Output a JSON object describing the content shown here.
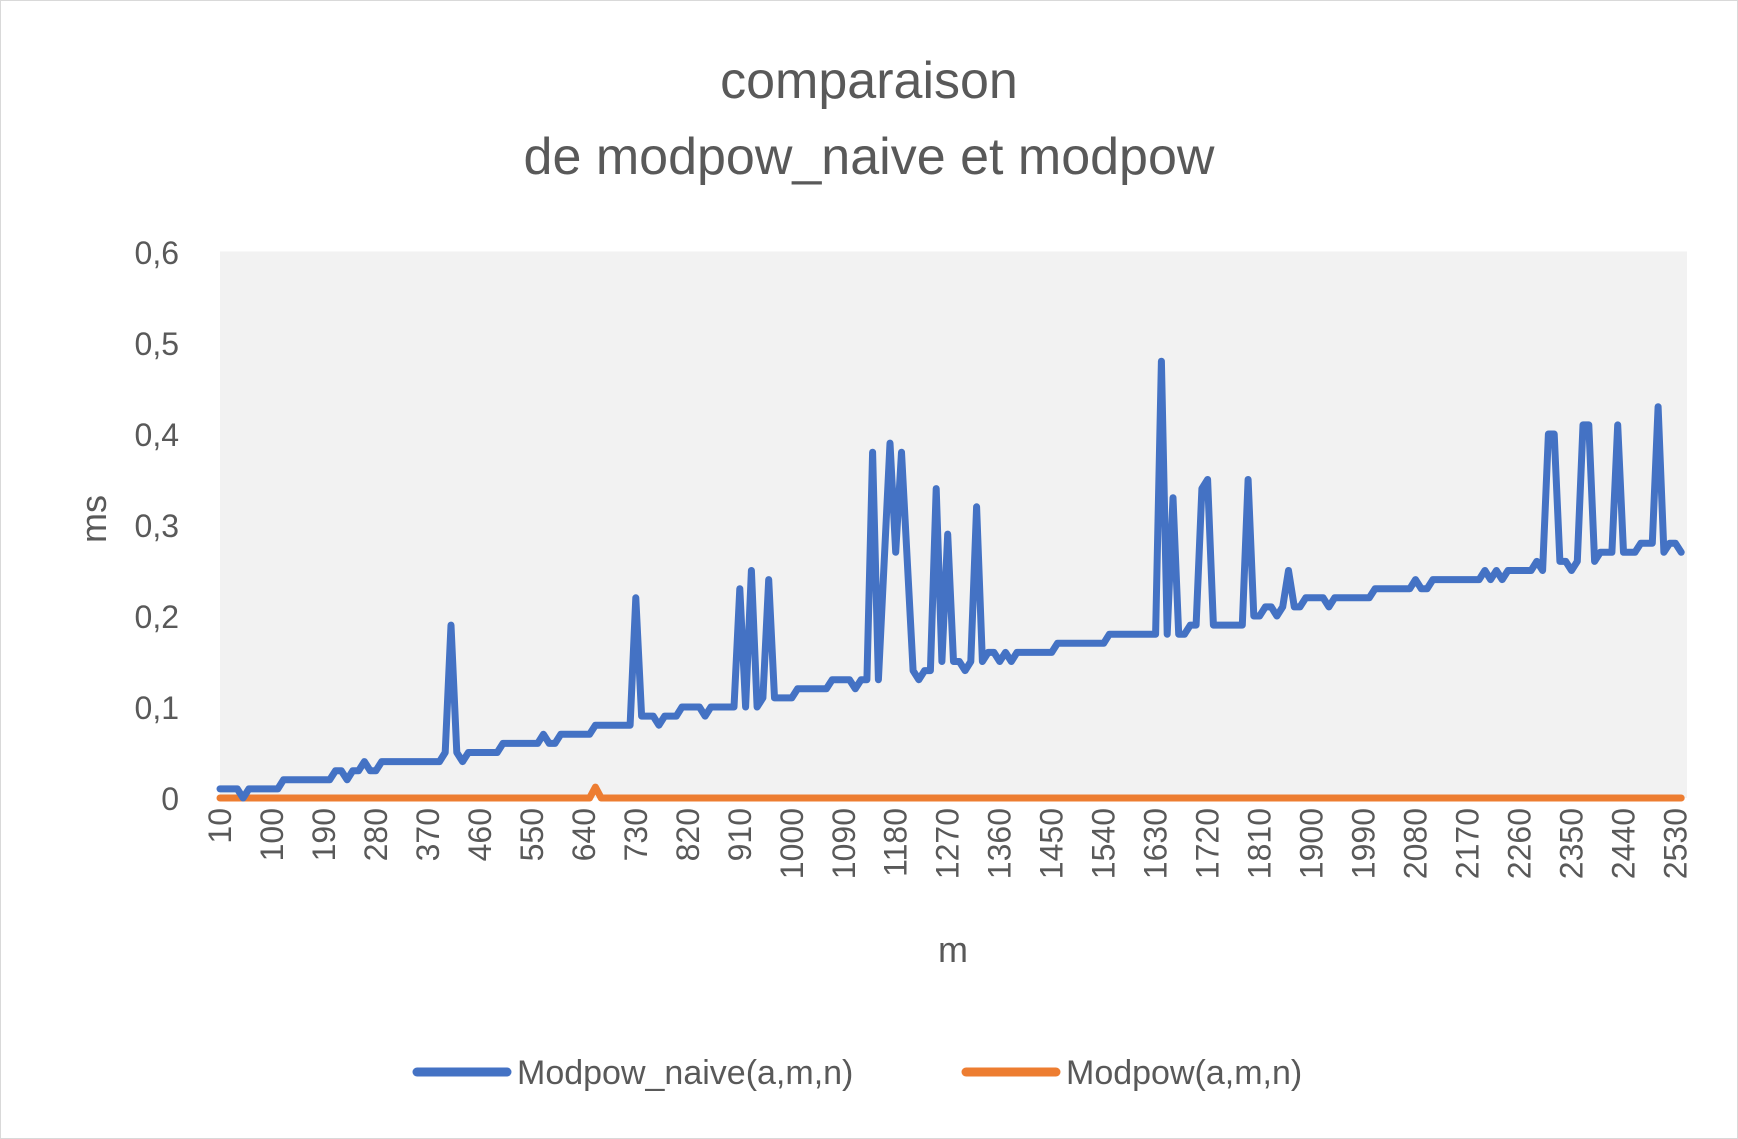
{
  "chart_data": {
    "type": "line",
    "title_lines": [
      "comparaison",
      "de modpow_naive et modpow"
    ],
    "xlabel": "m",
    "ylabel": "ms",
    "ylim": [
      0,
      0.6
    ],
    "y_ticks": [
      "0",
      "0,1",
      "0,2",
      "0,3",
      "0,4",
      "0,5",
      "0,6"
    ],
    "x_range": [
      10,
      2550
    ],
    "x_ticks": [
      "10",
      "100",
      "190",
      "280",
      "370",
      "460",
      "550",
      "640",
      "730",
      "820",
      "910",
      "1000",
      "1090",
      "1180",
      "1270",
      "1360",
      "1450",
      "1540",
      "1630",
      "1720",
      "1810",
      "1900",
      "1990",
      "2080",
      "2170",
      "2260",
      "2350",
      "2440",
      "2530"
    ],
    "grid": true,
    "legend_position": "bottom",
    "series": [
      {
        "name": "Modpow_naive(a,m,n)",
        "color": "#4472c4",
        "points": [
          [
            10,
            0.01
          ],
          [
            40,
            0.01
          ],
          [
            50,
            0.0
          ],
          [
            60,
            0.01
          ],
          [
            110,
            0.01
          ],
          [
            120,
            0.02
          ],
          [
            200,
            0.02
          ],
          [
            210,
            0.03
          ],
          [
            220,
            0.03
          ],
          [
            230,
            0.02
          ],
          [
            240,
            0.03
          ],
          [
            250,
            0.03
          ],
          [
            260,
            0.04
          ],
          [
            270,
            0.03
          ],
          [
            280,
            0.03
          ],
          [
            290,
            0.04
          ],
          [
            390,
            0.04
          ],
          [
            400,
            0.05
          ],
          [
            410,
            0.19
          ],
          [
            420,
            0.05
          ],
          [
            430,
            0.04
          ],
          [
            440,
            0.05
          ],
          [
            490,
            0.05
          ],
          [
            500,
            0.06
          ],
          [
            560,
            0.06
          ],
          [
            570,
            0.07
          ],
          [
            580,
            0.06
          ],
          [
            590,
            0.06
          ],
          [
            600,
            0.07
          ],
          [
            650,
            0.07
          ],
          [
            660,
            0.08
          ],
          [
            720,
            0.08
          ],
          [
            730,
            0.22
          ],
          [
            740,
            0.09
          ],
          [
            760,
            0.09
          ],
          [
            770,
            0.08
          ],
          [
            780,
            0.09
          ],
          [
            800,
            0.09
          ],
          [
            810,
            0.1
          ],
          [
            840,
            0.1
          ],
          [
            850,
            0.09
          ],
          [
            860,
            0.1
          ],
          [
            900,
            0.1
          ],
          [
            910,
            0.23
          ],
          [
            920,
            0.1
          ],
          [
            930,
            0.25
          ],
          [
            940,
            0.1
          ],
          [
            950,
            0.11
          ],
          [
            960,
            0.24
          ],
          [
            970,
            0.11
          ],
          [
            1000,
            0.11
          ],
          [
            1010,
            0.12
          ],
          [
            1060,
            0.12
          ],
          [
            1070,
            0.13
          ],
          [
            1100,
            0.13
          ],
          [
            1110,
            0.12
          ],
          [
            1120,
            0.13
          ],
          [
            1130,
            0.13
          ],
          [
            1140,
            0.38
          ],
          [
            1150,
            0.13
          ],
          [
            1170,
            0.39
          ],
          [
            1180,
            0.27
          ],
          [
            1190,
            0.38
          ],
          [
            1210,
            0.14
          ],
          [
            1220,
            0.13
          ],
          [
            1230,
            0.14
          ],
          [
            1240,
            0.14
          ],
          [
            1250,
            0.34
          ],
          [
            1260,
            0.15
          ],
          [
            1270,
            0.29
          ],
          [
            1280,
            0.15
          ],
          [
            1290,
            0.15
          ],
          [
            1300,
            0.14
          ],
          [
            1310,
            0.15
          ],
          [
            1320,
            0.32
          ],
          [
            1330,
            0.15
          ],
          [
            1340,
            0.16
          ],
          [
            1350,
            0.16
          ],
          [
            1360,
            0.15
          ],
          [
            1370,
            0.16
          ],
          [
            1380,
            0.15
          ],
          [
            1390,
            0.16
          ],
          [
            1450,
            0.16
          ],
          [
            1460,
            0.17
          ],
          [
            1540,
            0.17
          ],
          [
            1550,
            0.18
          ],
          [
            1630,
            0.18
          ],
          [
            1640,
            0.48
          ],
          [
            1650,
            0.18
          ],
          [
            1660,
            0.33
          ],
          [
            1670,
            0.18
          ],
          [
            1680,
            0.18
          ],
          [
            1690,
            0.19
          ],
          [
            1700,
            0.19
          ],
          [
            1710,
            0.34
          ],
          [
            1720,
            0.35
          ],
          [
            1730,
            0.19
          ],
          [
            1780,
            0.19
          ],
          [
            1790,
            0.35
          ],
          [
            1800,
            0.2
          ],
          [
            1810,
            0.2
          ],
          [
            1820,
            0.21
          ],
          [
            1830,
            0.21
          ],
          [
            1840,
            0.2
          ],
          [
            1850,
            0.21
          ],
          [
            1860,
            0.25
          ],
          [
            1870,
            0.21
          ],
          [
            1880,
            0.21
          ],
          [
            1890,
            0.22
          ],
          [
            1920,
            0.22
          ],
          [
            1930,
            0.21
          ],
          [
            1940,
            0.22
          ],
          [
            2000,
            0.22
          ],
          [
            2010,
            0.23
          ],
          [
            2070,
            0.23
          ],
          [
            2080,
            0.24
          ],
          [
            2090,
            0.23
          ],
          [
            2100,
            0.23
          ],
          [
            2110,
            0.24
          ],
          [
            2190,
            0.24
          ],
          [
            2200,
            0.25
          ],
          [
            2210,
            0.24
          ],
          [
            2220,
            0.25
          ],
          [
            2230,
            0.24
          ],
          [
            2240,
            0.25
          ],
          [
            2280,
            0.25
          ],
          [
            2290,
            0.26
          ],
          [
            2300,
            0.25
          ],
          [
            2310,
            0.4
          ],
          [
            2320,
            0.4
          ],
          [
            2330,
            0.26
          ],
          [
            2340,
            0.26
          ],
          [
            2350,
            0.25
          ],
          [
            2360,
            0.26
          ],
          [
            2370,
            0.41
          ],
          [
            2380,
            0.41
          ],
          [
            2390,
            0.26
          ],
          [
            2400,
            0.27
          ],
          [
            2420,
            0.27
          ],
          [
            2430,
            0.41
          ],
          [
            2440,
            0.27
          ],
          [
            2460,
            0.27
          ],
          [
            2470,
            0.28
          ],
          [
            2490,
            0.28
          ],
          [
            2500,
            0.43
          ],
          [
            2510,
            0.27
          ],
          [
            2520,
            0.28
          ],
          [
            2530,
            0.28
          ],
          [
            2540,
            0.27
          ]
        ]
      },
      {
        "name": "Modpow(a,m,n)",
        "color": "#ed7d31",
        "points": [
          [
            10,
            0.0
          ],
          [
            650,
            0.0
          ],
          [
            660,
            0.012
          ],
          [
            670,
            0.0
          ],
          [
            2540,
            0.0
          ]
        ]
      }
    ]
  }
}
